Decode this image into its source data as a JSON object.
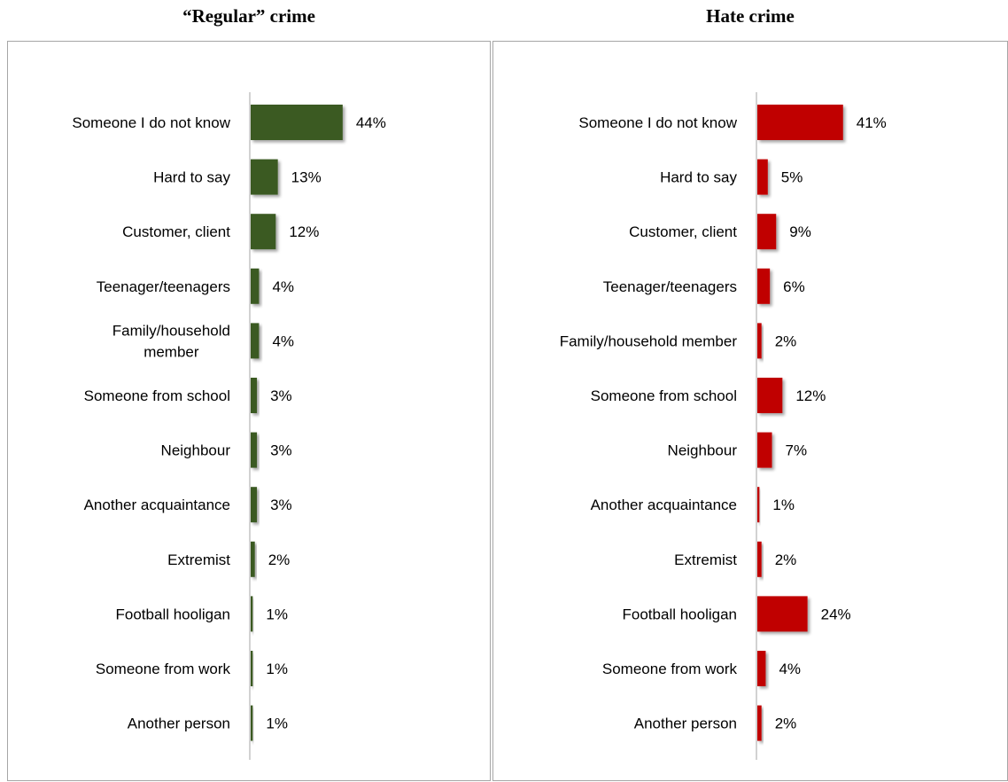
{
  "chart_data": [
    {
      "type": "bar",
      "orientation": "horizontal",
      "title": "“Regular” crime",
      "categories": [
        "Someone I do not know",
        "Hard to say",
        "Customer, client",
        "Teenager/teenagers",
        "Family/household member",
        "Someone from school",
        "Neighbour",
        "Another acquaintance",
        "Extremist",
        "Football hooligan",
        "Someone from work",
        "Another person"
      ],
      "category_lines": [
        [
          "Someone I do not know"
        ],
        [
          "Hard to say"
        ],
        [
          "Customer, client"
        ],
        [
          "Teenager/teenagers"
        ],
        [
          "Family/household",
          "member"
        ],
        [
          "Someone from school"
        ],
        [
          "Neighbour"
        ],
        [
          "Another acquaintance"
        ],
        [
          "Extremist"
        ],
        [
          "Football hooligan"
        ],
        [
          "Someone from work"
        ],
        [
          "Another person"
        ]
      ],
      "values": [
        44,
        13,
        12,
        4,
        4,
        3,
        3,
        3,
        2,
        1,
        1,
        1
      ],
      "value_labels": [
        "44%",
        "13%",
        "12%",
        "4%",
        "4%",
        "3%",
        "3%",
        "3%",
        "2%",
        "1%",
        "1%",
        "1%"
      ],
      "unit": "%",
      "color": "#3b5a23",
      "xlim": [
        0,
        50
      ],
      "grid": false
    },
    {
      "type": "bar",
      "orientation": "horizontal",
      "title": "Hate crime",
      "categories": [
        "Someone I do not know",
        "Hard to say",
        "Customer, client",
        "Teenager/teenagers",
        "Family/household member",
        "Someone from school",
        "Neighbour",
        "Another acquaintance",
        "Extremist",
        "Football hooligan",
        "Someone from work",
        "Another person"
      ],
      "category_lines": [
        [
          "Someone I do not know"
        ],
        [
          "Hard to say"
        ],
        [
          "Customer, client"
        ],
        [
          "Teenager/teenagers"
        ],
        [
          "Family/household member"
        ],
        [
          "Someone from school"
        ],
        [
          "Neighbour"
        ],
        [
          "Another acquaintance"
        ],
        [
          "Extremist"
        ],
        [
          "Football hooligan"
        ],
        [
          "Someone from work"
        ],
        [
          "Another person"
        ]
      ],
      "values": [
        41,
        5,
        9,
        6,
        2,
        12,
        7,
        1,
        2,
        24,
        4,
        2
      ],
      "value_labels": [
        "41%",
        "5%",
        "9%",
        "6%",
        "2%",
        "12%",
        "7%",
        "1%",
        "2%",
        "24%",
        "4%",
        "2%"
      ],
      "unit": "%",
      "color": "#c00000",
      "xlim": [
        0,
        50
      ],
      "grid": false
    }
  ]
}
